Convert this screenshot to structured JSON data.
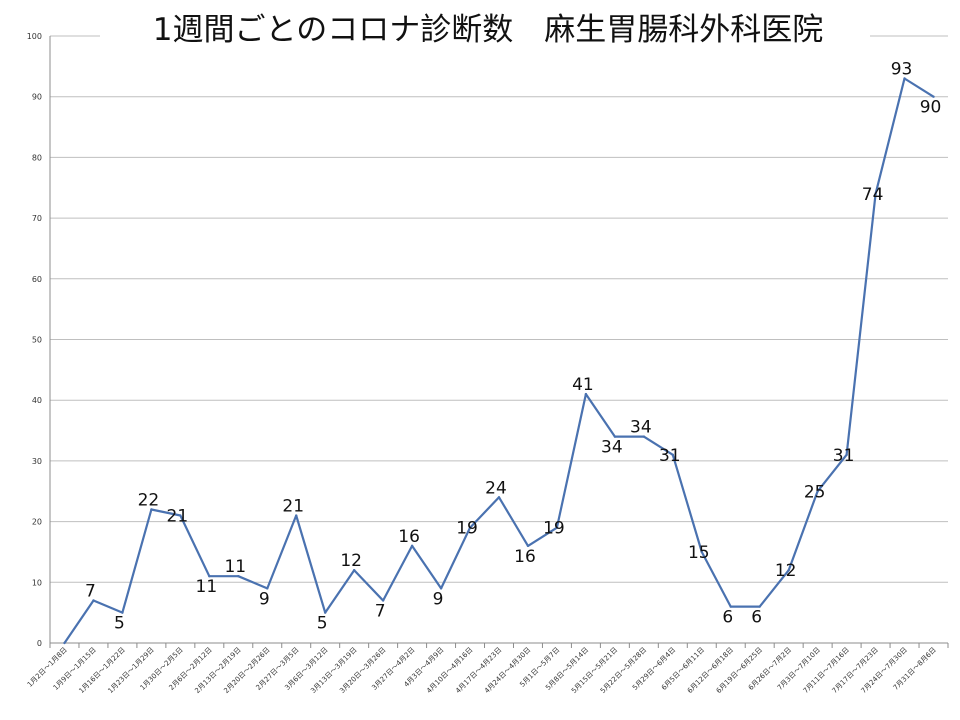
{
  "chart_data": {
    "type": "line",
    "title": "1週間ごとのコロナ診断数　麻生胃腸科外科医院",
    "xlabel": "",
    "ylabel": "",
    "ylim": [
      0,
      100
    ],
    "yticks": [
      0,
      10,
      20,
      30,
      40,
      50,
      60,
      70,
      80,
      90,
      100
    ],
    "grid": true,
    "legend": "none",
    "line_color": "#4a72b0",
    "categories": [
      "1月2日～1月8日",
      "1月9日～1月15日",
      "1月16日～1月22日",
      "1月23日～1月29日",
      "1月30日～2月5日",
      "2月6日～2月12日",
      "2月13日～2月19日",
      "2月20日～2月26日",
      "2月27日～3月5日",
      "3月6日～3月12日",
      "3月13日～3月19日",
      "3月20日～3月26日",
      "3月27日～4月2日",
      "4月3日～4月9日",
      "4月10日～4月16日",
      "4月17日～4月23日",
      "4月24日～4月30日",
      "5月1日～5月7日",
      "5月8日～5月14日",
      "5月15日～5月21日",
      "5月22日～5月28日",
      "5月29日～6月4日",
      "6月5日～6月11日",
      "6月12日～6月18日",
      "6月19日～6月25日",
      "6月26日～7月2日",
      "7月3日～7月10日",
      "7月11日～7月16日",
      "7月17日～7月23日",
      "7月24日～7月30日",
      "7月31日～8月6日"
    ],
    "values": [
      0,
      7,
      5,
      22,
      21,
      11,
      11,
      9,
      21,
      5,
      12,
      7,
      16,
      9,
      19,
      24,
      16,
      19,
      41,
      34,
      34,
      31,
      15,
      6,
      6,
      12,
      25,
      31,
      74,
      93,
      90
    ],
    "data_labels": [
      null,
      "7",
      "5",
      "22",
      "21",
      "11",
      "11",
      "9",
      "21",
      "5",
      "12",
      "7",
      "16",
      "9",
      "19",
      "24",
      "16",
      "19",
      "41",
      "34",
      "34",
      "31",
      "15",
      "6",
      "6",
      "12",
      "25",
      "31",
      "74",
      "93",
      "90"
    ]
  }
}
